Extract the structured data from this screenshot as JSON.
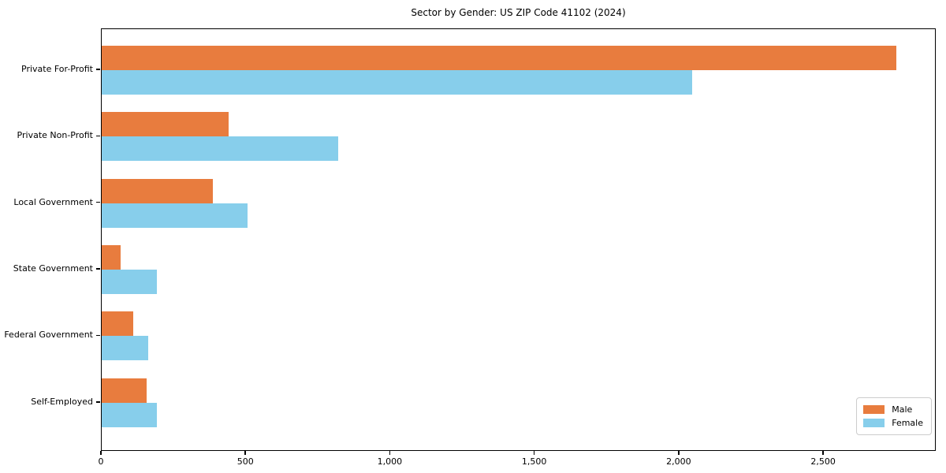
{
  "title": "Sector by Gender: US ZIP Code 41102 (2024)",
  "colors": {
    "male": "#e87c3e",
    "female": "#87ceeb",
    "axis": "#000000",
    "legend_border": "#cccccc",
    "background": "#ffffff"
  },
  "chart_data": {
    "type": "bar",
    "orientation": "horizontal",
    "title": "Sector by Gender: US ZIP Code 41102 (2024)",
    "xlabel": "",
    "ylabel": "",
    "categories": [
      "Private For-Profit",
      "Private Non-Profit",
      "Local Government",
      "State Government",
      "Federal Government",
      "Self-Employed"
    ],
    "series": [
      {
        "name": "Male",
        "color": "#e87c3e",
        "values": [
          2750,
          440,
          385,
          65,
          110,
          155
        ]
      },
      {
        "name": "Female",
        "color": "#87ceeb",
        "values": [
          2045,
          820,
          505,
          190,
          160,
          190
        ]
      }
    ],
    "xlim": [
      0,
      2890
    ],
    "xticks": [
      0,
      500,
      1000,
      1500,
      2000,
      2500
    ],
    "xtick_labels": [
      "0",
      "500",
      "1,000",
      "1,500",
      "2,000",
      "2,500"
    ],
    "legend_position": "lower right",
    "grid": false
  }
}
